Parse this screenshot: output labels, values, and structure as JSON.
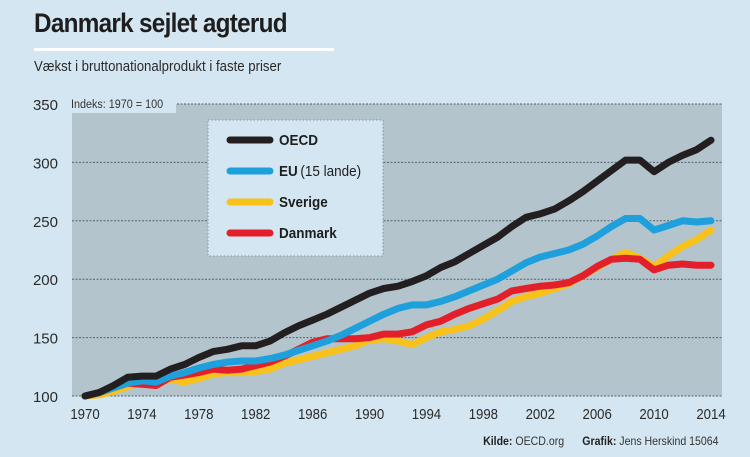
{
  "header": {
    "title": "Danmark sejlet agterud",
    "subtitle": "Vækst i bruttonationalprodukt i faste priser"
  },
  "footer": {
    "source_label": "Kilde:",
    "source_value": "OECD.org",
    "graphic_label": "Grafik:",
    "graphic_value": "Jens Herskind 15064"
  },
  "colors": {
    "page_background": "#d4e6f1",
    "plot_background": "#b3c4cd",
    "legend_background": "#d4e6f1",
    "OECD": "#231f20",
    "EU": "#1ea0dc",
    "Sverige": "#f9c21a",
    "Danmark": "#e3202a"
  },
  "chart_data": {
    "type": "line",
    "title": "Danmark sejlet agterud",
    "subtitle": "Vækst i bruttonationalprodukt i faste priser",
    "annotation": "Indeks: 1970 = 100",
    "xlabel": "",
    "ylabel": "",
    "xlim": [
      1970,
      2014
    ],
    "ylim": [
      100,
      350
    ],
    "grid": true,
    "legend_position": "top-left",
    "x_ticks": [
      "1970",
      "1974",
      "1978",
      "1982",
      "1986",
      "1990",
      "1994",
      "1998",
      "2002",
      "2006",
      "2010",
      "2014"
    ],
    "y_ticks": [
      "100",
      "150",
      "200",
      "250",
      "300",
      "350"
    ],
    "x": [
      1970,
      1971,
      1972,
      1973,
      1974,
      1975,
      1976,
      1977,
      1978,
      1979,
      1980,
      1981,
      1982,
      1983,
      1984,
      1985,
      1986,
      1987,
      1988,
      1989,
      1990,
      1991,
      1992,
      1993,
      1994,
      1995,
      1996,
      1997,
      1998,
      1999,
      2000,
      2001,
      2002,
      2003,
      2004,
      2005,
      2006,
      2007,
      2008,
      2009,
      2010,
      2011,
      2012,
      2013,
      2014
    ],
    "series": [
      {
        "name": "OECD",
        "legend_label": "OECD",
        "legend_suffix": "",
        "values": [
          100,
          103,
          109,
          116,
          117,
          117,
          123,
          127,
          133,
          138,
          140,
          143,
          143,
          147,
          154,
          160,
          165,
          170,
          176,
          182,
          188,
          192,
          194,
          198,
          203,
          210,
          215,
          222,
          229,
          236,
          245,
          253,
          256,
          260,
          267,
          275,
          284,
          293,
          302,
          302,
          292,
          300,
          306,
          311,
          319
        ]
      },
      {
        "name": "EU",
        "legend_label": "EU",
        "legend_suffix": "(15 lande)",
        "values": [
          100,
          103,
          107,
          111,
          113,
          112,
          117,
          120,
          124,
          127,
          129,
          130,
          130,
          132,
          135,
          139,
          143,
          147,
          152,
          158,
          164,
          170,
          175,
          178,
          178,
          181,
          185,
          190,
          195,
          200,
          207,
          214,
          219,
          222,
          225,
          230,
          237,
          245,
          252,
          252,
          242,
          246,
          250,
          249,
          250
        ]
      },
      {
        "name": "Sverige",
        "legend_label": "Sverige",
        "legend_suffix": "",
        "values": [
          100,
          101,
          104,
          108,
          112,
          114,
          114,
          112,
          115,
          119,
          120,
          120,
          121,
          123,
          128,
          131,
          134,
          137,
          140,
          143,
          148,
          149,
          147,
          144,
          150,
          155,
          157,
          160,
          166,
          173,
          181,
          185,
          188,
          192,
          196,
          203,
          210,
          217,
          223,
          218,
          211,
          220,
          228,
          234,
          242
        ]
      },
      {
        "name": "Danmark",
        "legend_label": "Danmark",
        "legend_suffix": "",
        "values": [
          100,
          103,
          107,
          111,
          110,
          109,
          116,
          118,
          120,
          123,
          122,
          123,
          126,
          129,
          134,
          140,
          146,
          149,
          149,
          149,
          150,
          153,
          153,
          155,
          161,
          164,
          170,
          175,
          179,
          183,
          190,
          192,
          194,
          195,
          197,
          203,
          211,
          217,
          218,
          217,
          208,
          212,
          213,
          212,
          212
        ]
      }
    ]
  }
}
